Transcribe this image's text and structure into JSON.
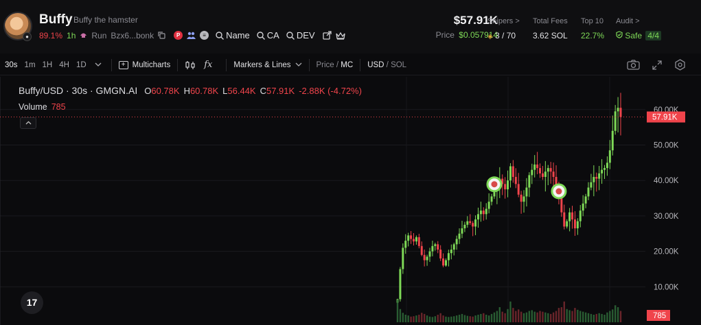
{
  "header": {
    "name": "Buffy",
    "full_name": "Buffy the hamster",
    "change_pct": "89.1%",
    "age": "1h",
    "platform": "Run",
    "address": "Bzx6...bonk",
    "links": [
      "Name",
      "CA",
      "DEV"
    ],
    "market_cap": "$57.91K",
    "price_label": "Price",
    "price": "$0.0",
    "price_sub": "57914",
    "stats": {
      "snipers_label": "Snipers >",
      "snipers_value": "3 / 70",
      "fees_label": "Total Fees",
      "fees_value": "3.62 SOL",
      "top10_label": "Top 10",
      "top10_value": "22.7%",
      "audit_label": "Audit >",
      "audit_value": "Safe",
      "audit_score": "4/4"
    }
  },
  "toolbar": {
    "timeframes": [
      "30s",
      "1m",
      "1H",
      "4H",
      "1D"
    ],
    "active_timeframe": "30s",
    "multicharts": "Multicharts",
    "indicator_symbol": "fx",
    "markers": "Markers & Lines",
    "price": "Price",
    "mc": "MC",
    "usd": "USD",
    "sol": "SOL"
  },
  "legend": {
    "title": "Buffy/USD · 30s · GMGN.AI",
    "o_label": "O",
    "o": "60.78K",
    "h_label": "H",
    "h": "60.78K",
    "l_label": "L",
    "l": "56.44K",
    "c_label": "C",
    "c": "57.91K",
    "change": "-2.88K (-4.72%)",
    "volume_label": "Volume",
    "volume": "785"
  },
  "tv_logo": "17",
  "colors": {
    "up": "#7ed957",
    "down": "#f0444b",
    "bg": "#0b0b0d",
    "grid": "#1b1b1f"
  },
  "chart_data": {
    "type": "candlestick",
    "title": "Buffy/USD · 30s · GMGN.AI",
    "y_unit": "USD market cap",
    "ylim": [
      0,
      61000
    ],
    "y_ticks": [
      "10.00K",
      "20.00K",
      "30.00K",
      "40.00K",
      "50.00K",
      "60.00K"
    ],
    "last_price_label": "57.91K",
    "last_volume_label": "785",
    "close_series": [
      6500,
      15000,
      21000,
      23000,
      24500,
      23500,
      22800,
      24000,
      21500,
      19000,
      17500,
      18500,
      20000,
      21500,
      22000,
      20500,
      18000,
      16000,
      17500,
      19500,
      20500,
      22000,
      23500,
      25000,
      26500,
      27500,
      28500,
      28000,
      27000,
      29000,
      30500,
      31500,
      30500,
      32000,
      34000,
      35500,
      37000,
      38500,
      40500,
      39000,
      37500,
      40000,
      44000,
      41000,
      39000,
      36000,
      34000,
      35500,
      38000,
      41500,
      43000,
      44500,
      43500,
      42000,
      41000,
      42500,
      43500,
      42500,
      41000,
      38500,
      35000,
      31000,
      27000,
      28500,
      31000,
      29000,
      26500,
      28500,
      31500,
      33500,
      35500,
      38000,
      39500,
      41000,
      40500,
      42000,
      43000,
      43500,
      45000,
      48500,
      54000,
      59500,
      60500,
      57910
    ],
    "volumes": [
      60,
      35,
      25,
      20,
      18,
      15,
      16,
      18,
      20,
      25,
      22,
      18,
      15,
      14,
      16,
      20,
      24,
      18,
      15,
      14,
      15,
      16,
      18,
      20,
      22,
      19,
      17,
      16,
      15,
      18,
      20,
      22,
      24,
      20,
      18,
      22,
      26,
      30,
      40,
      28,
      24,
      35,
      55,
      38,
      30,
      34,
      28,
      24,
      26,
      30,
      32,
      28,
      26,
      30,
      28,
      26,
      24,
      22,
      26,
      30,
      38,
      40,
      55,
      35,
      32,
      30,
      38,
      33,
      30,
      28,
      26,
      24,
      22,
      20,
      22,
      24,
      22,
      20,
      26,
      30,
      34,
      45,
      40,
      30
    ],
    "signal_markers_x_index": [
      36,
      60
    ],
    "grid": true
  }
}
